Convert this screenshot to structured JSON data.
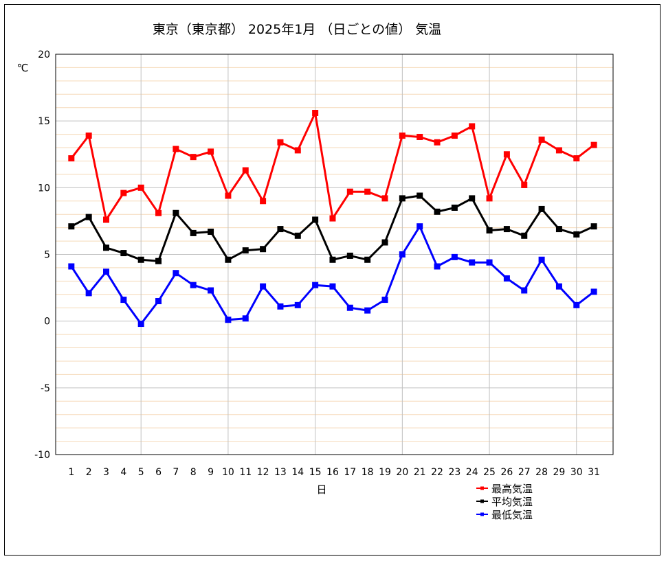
{
  "chart_data": {
    "type": "line",
    "title": "東京（東京都） 2025年1月 （日ごとの値） 気温",
    "xlabel": "日",
    "ylabel": "℃",
    "ylim": [
      -10,
      20
    ],
    "yticks": [
      -10,
      -5,
      0,
      5,
      10,
      15,
      20
    ],
    "grid": true,
    "legend_position": "bottom-right",
    "x": [
      1,
      2,
      3,
      4,
      5,
      6,
      7,
      8,
      9,
      10,
      11,
      12,
      13,
      14,
      15,
      16,
      17,
      18,
      19,
      20,
      21,
      22,
      23,
      24,
      25,
      26,
      27,
      28,
      29,
      30,
      31
    ],
    "series": [
      {
        "name": "最高気温",
        "color": "#ff0000",
        "values": [
          12.2,
          13.9,
          7.6,
          9.6,
          10.0,
          8.1,
          12.9,
          12.3,
          12.7,
          9.4,
          11.3,
          9.0,
          13.4,
          12.8,
          15.6,
          7.7,
          9.7,
          9.7,
          9.2,
          13.9,
          13.8,
          13.4,
          13.9,
          14.6,
          9.2,
          12.5,
          10.2,
          13.6,
          12.8,
          12.2,
          13.2
        ]
      },
      {
        "name": "平均気温",
        "color": "#000000",
        "values": [
          7.1,
          7.8,
          5.5,
          5.1,
          4.6,
          4.5,
          8.1,
          6.6,
          6.7,
          4.6,
          5.3,
          5.4,
          6.9,
          6.4,
          7.6,
          4.6,
          4.9,
          4.6,
          5.9,
          9.2,
          9.4,
          8.2,
          8.5,
          9.2,
          6.8,
          6.9,
          6.4,
          8.4,
          6.9,
          6.5,
          7.1
        ]
      },
      {
        "name": "最低気温",
        "color": "#0000ff",
        "values": [
          4.1,
          2.1,
          3.7,
          1.6,
          -0.2,
          1.5,
          3.6,
          2.7,
          2.3,
          0.1,
          0.2,
          2.6,
          1.1,
          1.2,
          2.7,
          2.6,
          1.0,
          0.8,
          1.6,
          5.0,
          7.1,
          4.1,
          4.8,
          4.4,
          4.4,
          3.2,
          2.3,
          4.6,
          2.6,
          1.2,
          2.2
        ]
      }
    ],
    "colors": {
      "grid_major": "#c0c0c0",
      "grid_minor": "#f5d9b8"
    }
  }
}
